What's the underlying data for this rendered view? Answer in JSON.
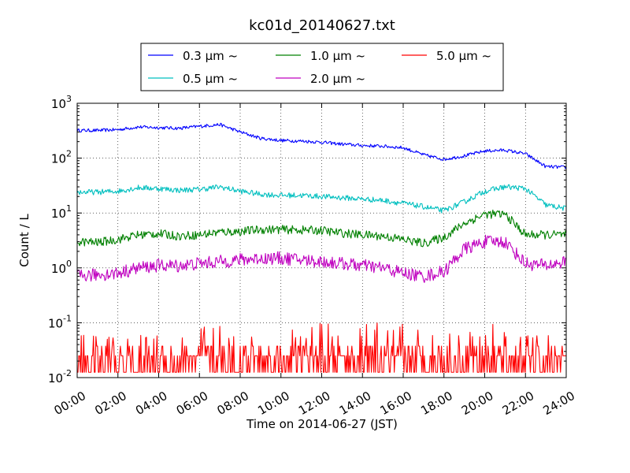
{
  "chart_data": {
    "type": "line",
    "title": "kc01d_20140627.txt",
    "xlabel": "Time on 2014-06-27 (JST)",
    "ylabel": "Count / L",
    "yscale": "log",
    "ylim": [
      0.01,
      1000
    ],
    "xlim": [
      "00:00",
      "24:00"
    ],
    "grid": true,
    "legend_location": "top-center",
    "x_ticks": [
      "00:00",
      "02:00",
      "04:00",
      "06:00",
      "08:00",
      "10:00",
      "12:00",
      "14:00",
      "16:00",
      "18:00",
      "20:00",
      "22:00",
      "24:00"
    ],
    "y_ticks": [
      {
        "base": "10",
        "exp": "-2"
      },
      {
        "base": "10",
        "exp": "-1"
      },
      {
        "base": "10",
        "exp": "0"
      },
      {
        "base": "10",
        "exp": "1"
      },
      {
        "base": "10",
        "exp": "2"
      },
      {
        "base": "10",
        "exp": "3"
      }
    ],
    "x_hours": [
      0,
      1,
      2,
      3,
      4,
      5,
      6,
      7,
      8,
      9,
      10,
      11,
      12,
      13,
      14,
      15,
      16,
      17,
      18,
      19,
      20,
      21,
      22,
      23,
      24
    ],
    "series": [
      {
        "name": "0.3 μm ~",
        "color": "#0000ff",
        "noise": 0.03,
        "values": [
          320,
          320,
          330,
          370,
          360,
          350,
          380,
          410,
          300,
          230,
          210,
          205,
          195,
          180,
          170,
          165,
          155,
          115,
          95,
          110,
          135,
          140,
          120,
          70,
          68
        ]
      },
      {
        "name": "0.5 μm ~",
        "color": "#00bfbf",
        "noise": 0.05,
        "values": [
          24,
          24,
          25,
          29,
          28,
          26,
          27,
          30,
          25,
          22,
          21,
          21,
          20,
          19,
          18,
          17,
          15,
          13,
          11,
          16,
          25,
          30,
          28,
          14,
          12
        ]
      },
      {
        "name": "1.0 μm ~",
        "color": "#008000",
        "noise": 0.08,
        "values": [
          3.0,
          2.9,
          3.3,
          4.0,
          4.2,
          3.8,
          4.0,
          4.5,
          4.6,
          5.0,
          5.0,
          4.9,
          4.8,
          4.3,
          4.0,
          3.8,
          3.3,
          2.8,
          3.6,
          6.5,
          9.5,
          9.5,
          4.0,
          4.0,
          4.0
        ]
      },
      {
        "name": "2.0 μm ~",
        "color": "#bf00bf",
        "noise": 0.12,
        "values": [
          0.7,
          0.75,
          0.8,
          1.0,
          1.1,
          1.1,
          1.2,
          1.3,
          1.4,
          1.5,
          1.5,
          1.4,
          1.3,
          1.2,
          1.1,
          1.0,
          0.8,
          0.7,
          0.85,
          2.2,
          3.0,
          3.0,
          1.2,
          1.1,
          1.3
        ]
      },
      {
        "name": "5.0 μm ~",
        "color": "#ff0000",
        "noise": 0,
        "values": [
          0.02,
          0.02,
          0.02,
          0.02,
          0.02,
          0.02,
          0.025,
          0.025,
          0.03,
          0.03,
          0.03,
          0.03,
          0.03,
          0.03,
          0.03,
          0.03,
          0.03,
          0.03,
          0.03,
          0.03,
          0.03,
          0.025,
          0.02,
          0.02,
          0.02
        ]
      }
    ]
  }
}
